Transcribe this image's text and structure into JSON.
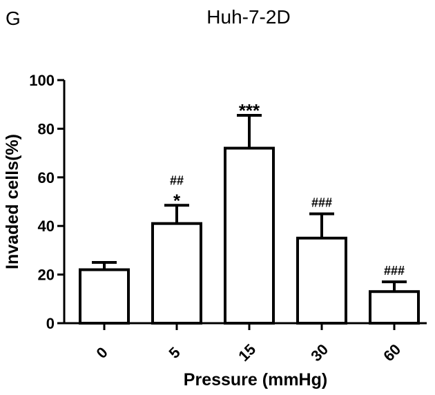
{
  "chart_data": {
    "type": "bar",
    "panel_label": "G",
    "title": "Huh-7-2D",
    "xlabel": "Pressure (mmHg)",
    "ylabel": "Invaded cells(%)",
    "categories": [
      "0",
      "5",
      "15",
      "30",
      "60"
    ],
    "values": [
      22,
      41,
      72,
      35,
      13
    ],
    "error_upper": [
      25,
      48.5,
      85.5,
      45,
      17
    ],
    "annotations": [
      [],
      [
        "##",
        "*"
      ],
      [
        "***"
      ],
      [
        "###"
      ],
      [
        "###"
      ]
    ],
    "ylim": [
      0,
      100
    ],
    "yticks": [
      "0",
      "20",
      "40",
      "60",
      "80",
      "100"
    ],
    "grid": false,
    "bar_fill": "#ffffff",
    "stroke_color": "#000000"
  }
}
